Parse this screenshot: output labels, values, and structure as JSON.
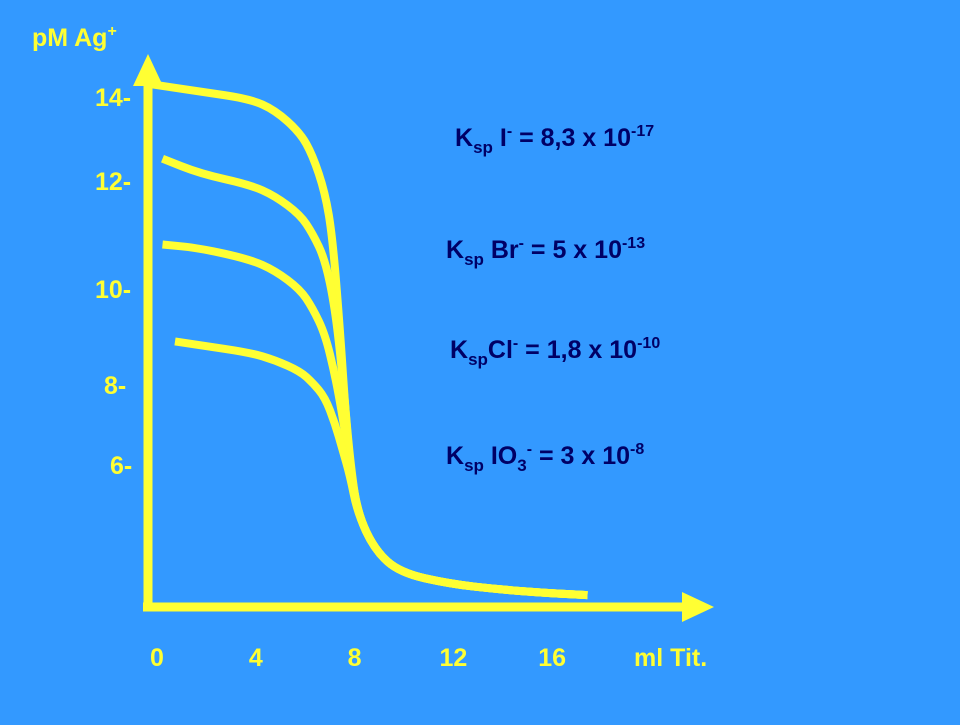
{
  "chart_data": {
    "type": "line",
    "ylabel": {
      "base": "pM  Ag",
      "sup": "+"
    },
    "xlabel": "ml  Tit.",
    "xticks": [
      "0",
      "4",
      "8",
      "12",
      "16"
    ],
    "yticks": [
      "14-",
      "12-",
      "10-",
      "8-",
      "6-"
    ],
    "series": [
      {
        "annotation": {
          "k": "K",
          "sub": "sp",
          "ion": " I",
          "ion_sub": "",
          "charge": "-",
          "eq": " = 8,3  x 10",
          "exp": "-17"
        },
        "x": [
          0,
          2,
          4,
          5,
          6,
          6.5,
          7,
          7.3,
          7.6,
          7.8,
          8,
          8.3,
          9,
          10,
          12,
          14,
          16,
          17.5
        ],
        "y": [
          14.1,
          13.9,
          13.7,
          13.4,
          12.8,
          12.2,
          11.2,
          10,
          7.5,
          5.5,
          3.9,
          2.6,
          1.6,
          1.0,
          0.7,
          0.55,
          0.45,
          0.4
        ]
      },
      {
        "annotation": {
          "k": "K",
          "sub": "sp",
          "ion": " Br",
          "ion_sub": "",
          "charge": "-",
          "eq": " = 5  x  10",
          "exp": "-13"
        },
        "x": [
          0.5,
          2,
          4,
          5,
          6,
          6.5,
          7,
          7.4,
          7.7,
          8,
          8.3,
          9,
          10,
          12,
          14,
          16,
          17.5
        ],
        "y": [
          12.1,
          11.7,
          11.4,
          11.1,
          10.6,
          10.1,
          9.4,
          8.1,
          6.3,
          4.0,
          2.6,
          1.6,
          1.0,
          0.7,
          0.55,
          0.45,
          0.4
        ]
      },
      {
        "annotation": {
          "k": "K",
          "sub": "sp",
          "ion": "Cl",
          "ion_sub": "",
          "charge": "-",
          "eq": " = 1,8  x  10",
          "exp": "-10"
        },
        "x": [
          0.5,
          2,
          4,
          5,
          6,
          6.5,
          7,
          7.4,
          7.7,
          8,
          8.3,
          9,
          10,
          12,
          14,
          16,
          17.5
        ],
        "y": [
          9.8,
          9.7,
          9.4,
          9.1,
          8.6,
          8.1,
          7.4,
          6.3,
          5.2,
          3.9,
          2.6,
          1.6,
          1.0,
          0.7,
          0.55,
          0.45,
          0.4
        ]
      },
      {
        "annotation": {
          "k": "K",
          "sub": "sp",
          "ion": " IO",
          "ion_sub": "3",
          "charge": "-",
          "eq": " = 3  x  10",
          "exp": "-8"
        },
        "x": [
          1,
          2,
          4,
          5,
          6,
          6.5,
          7,
          7.4,
          7.7,
          8,
          8.3,
          9,
          10,
          12,
          14,
          16,
          17.5
        ],
        "y": [
          7.2,
          7.1,
          6.9,
          6.7,
          6.4,
          6.1,
          5.7,
          5.0,
          4.3,
          3.6,
          2.6,
          1.6,
          1.0,
          0.7,
          0.55,
          0.45,
          0.4
        ]
      }
    ],
    "colors": {
      "background": "#3399ff",
      "ink": "#ffff33",
      "text": "#000066"
    }
  }
}
